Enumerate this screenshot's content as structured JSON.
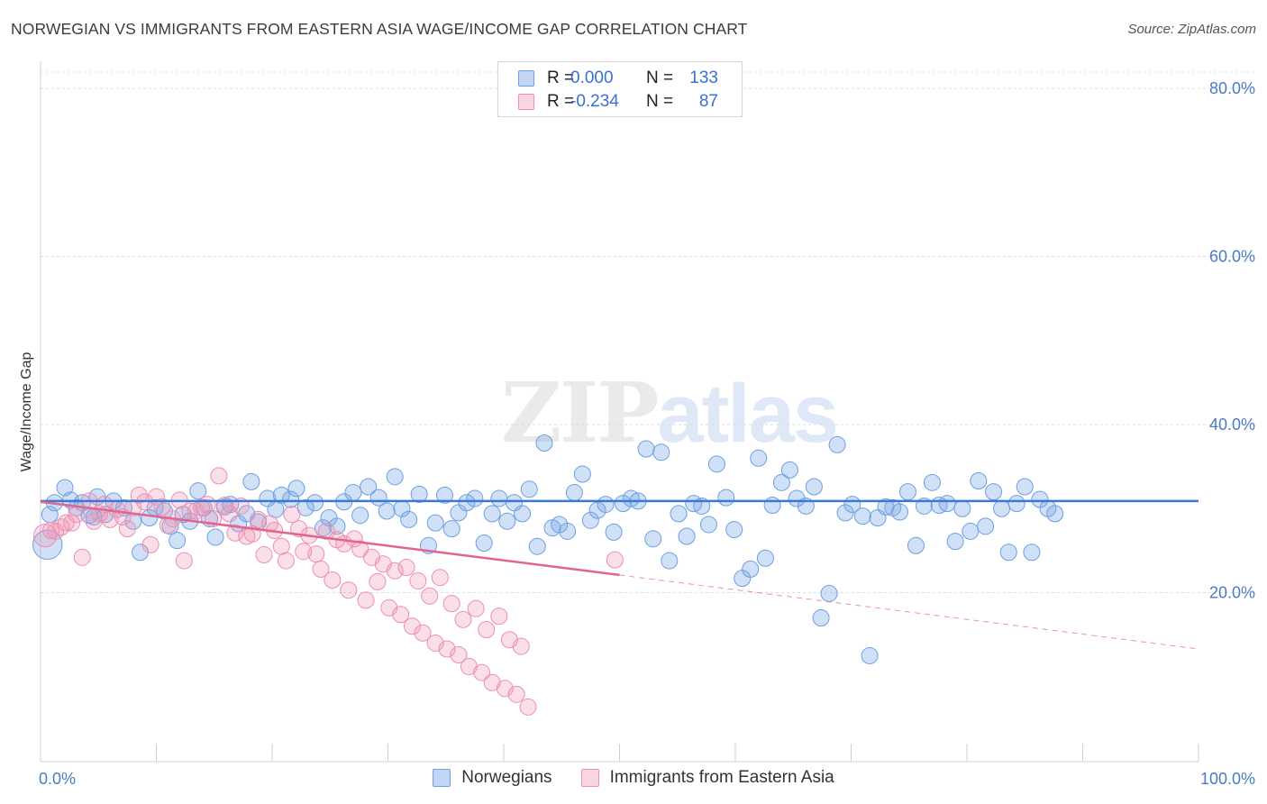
{
  "header": {
    "title": "NORWEGIAN VS IMMIGRANTS FROM EASTERN ASIA WAGE/INCOME GAP CORRELATION CHART",
    "source": "Source: ZipAtlas.com"
  },
  "watermark": {
    "part1": "ZIP",
    "part2": "atlas"
  },
  "legend": {
    "rows": [
      {
        "r_label": "R =",
        "r_value": "0.000",
        "n_label": "N =",
        "n_value": "133",
        "color": "#6ea0e6"
      },
      {
        "r_label": "R =",
        "r_value": "-0.234",
        "n_label": "N =",
        "n_value": "87",
        "color": "#ef8fb0"
      }
    ]
  },
  "bottom_legend": {
    "items": [
      "Norwegians",
      "Immigrants from Eastern Asia"
    ]
  },
  "colors": {
    "blue_fill": "rgba(120,165,230,0.35)",
    "blue_stroke": "#6e9fe2",
    "blue_line": "#3a78d6",
    "pink_fill": "rgba(240,150,180,0.30)",
    "pink_stroke": "#ec8fb2",
    "pink_line": "#e2648f",
    "tick_text": "#4a7cc4"
  },
  "chart_data": {
    "type": "scatter",
    "title": "NORWEGIAN VS IMMIGRANTS FROM EASTERN ASIA WAGE/INCOME GAP CORRELATION CHART",
    "xlabel": "",
    "ylabel": "Wage/Income Gap",
    "xlim": [
      0,
      100
    ],
    "ylim": [
      0,
      80
    ],
    "x_tick_labels": [
      "0.0%",
      "100.0%"
    ],
    "y_ticks": [
      20,
      40,
      60,
      80
    ],
    "y_tick_labels": [
      "20.0%",
      "40.0%",
      "60.0%",
      "80.0%"
    ],
    "grid": true,
    "legend_position": "top-center",
    "series": [
      {
        "name": "Norwegians",
        "r": 0.0,
        "n": 133,
        "trend": {
          "x": [
            0,
            100
          ],
          "y": [
            30.9,
            30.9
          ]
        },
        "points": [
          [
            0.6,
            25.7,
            1.8
          ],
          [
            0.8,
            29.3,
            1
          ],
          [
            1.2,
            30.7,
            1
          ],
          [
            2.1,
            32.5,
            1
          ],
          [
            2.6,
            31.0,
            1
          ],
          [
            3.1,
            30.1,
            1
          ],
          [
            3.6,
            30.7,
            1
          ],
          [
            4.2,
            29.2,
            1
          ],
          [
            4.6,
            29.0,
            1
          ],
          [
            4.9,
            31.4,
            1
          ],
          [
            5.6,
            29.3,
            1
          ],
          [
            6.3,
            30.9,
            1
          ],
          [
            7.2,
            30.1,
            1
          ],
          [
            8.0,
            28.5,
            1
          ],
          [
            8.6,
            24.8,
            1
          ],
          [
            9.4,
            28.9,
            1
          ],
          [
            9.9,
            30.1,
            1
          ],
          [
            10.7,
            29.7,
            1
          ],
          [
            11.2,
            27.9,
            1
          ],
          [
            11.8,
            26.2,
            1
          ],
          [
            12.3,
            29.3,
            1
          ],
          [
            12.9,
            28.5,
            1
          ],
          [
            13.6,
            32.1,
            1
          ],
          [
            14.1,
            30.1,
            1
          ],
          [
            14.6,
            28.8,
            1
          ],
          [
            15.1,
            26.6,
            1
          ],
          [
            15.9,
            30.2,
            1
          ],
          [
            16.4,
            30.5,
            1
          ],
          [
            17.1,
            28.2,
            1
          ],
          [
            17.8,
            29.4,
            1
          ],
          [
            18.2,
            33.2,
            1
          ],
          [
            18.8,
            28.4,
            1
          ],
          [
            19.6,
            31.2,
            1
          ],
          [
            20.3,
            29.9,
            1
          ],
          [
            20.8,
            31.6,
            1
          ],
          [
            21.6,
            31.1,
            1
          ],
          [
            22.1,
            32.4,
            1
          ],
          [
            22.9,
            30.1,
            1
          ],
          [
            23.7,
            30.7,
            1
          ],
          [
            24.4,
            27.7,
            1
          ],
          [
            24.9,
            28.9,
            1
          ],
          [
            25.6,
            27.9,
            1
          ],
          [
            26.2,
            30.8,
            1
          ],
          [
            27.0,
            31.9,
            1
          ],
          [
            27.6,
            29.2,
            1
          ],
          [
            28.3,
            32.6,
            1
          ],
          [
            29.2,
            31.3,
            1
          ],
          [
            29.9,
            29.7,
            1
          ],
          [
            30.6,
            33.8,
            1
          ],
          [
            31.2,
            30.0,
            1
          ],
          [
            31.8,
            28.7,
            1
          ],
          [
            32.7,
            31.7,
            1
          ],
          [
            33.5,
            25.6,
            1
          ],
          [
            34.1,
            28.3,
            1
          ],
          [
            34.9,
            31.6,
            1
          ],
          [
            35.5,
            27.6,
            1
          ],
          [
            36.1,
            29.5,
            1
          ],
          [
            36.8,
            30.7,
            1
          ],
          [
            37.5,
            31.2,
            1
          ],
          [
            38.3,
            25.9,
            1
          ],
          [
            39.0,
            29.4,
            1
          ],
          [
            39.6,
            31.2,
            1
          ],
          [
            40.3,
            28.5,
            1
          ],
          [
            40.9,
            30.7,
            1
          ],
          [
            41.6,
            29.4,
            1
          ],
          [
            42.2,
            32.3,
            1
          ],
          [
            42.9,
            25.5,
            1
          ],
          [
            43.5,
            37.8,
            1
          ],
          [
            44.2,
            27.7,
            1
          ],
          [
            44.8,
            28.1,
            1
          ],
          [
            45.5,
            27.3,
            1
          ],
          [
            46.1,
            31.9,
            1
          ],
          [
            46.8,
            34.1,
            1
          ],
          [
            47.5,
            28.6,
            1
          ],
          [
            48.1,
            29.8,
            1
          ],
          [
            48.8,
            30.5,
            1
          ],
          [
            49.5,
            27.2,
            1
          ],
          [
            50.3,
            30.6,
            1
          ],
          [
            51.0,
            31.2,
            1
          ],
          [
            51.6,
            30.9,
            1
          ],
          [
            52.3,
            37.1,
            1
          ],
          [
            52.9,
            26.4,
            1
          ],
          [
            53.6,
            36.7,
            1
          ],
          [
            54.3,
            23.8,
            1
          ],
          [
            55.1,
            29.4,
            1
          ],
          [
            55.8,
            26.7,
            1
          ],
          [
            56.4,
            30.6,
            1
          ],
          [
            57.1,
            30.3,
            1
          ],
          [
            57.7,
            28.1,
            1
          ],
          [
            58.4,
            35.3,
            1
          ],
          [
            59.2,
            31.3,
            1
          ],
          [
            59.9,
            27.5,
            1
          ],
          [
            60.6,
            21.7,
            1
          ],
          [
            61.3,
            22.8,
            1
          ],
          [
            62.0,
            36.0,
            1
          ],
          [
            62.6,
            24.1,
            1
          ],
          [
            63.2,
            30.4,
            1
          ],
          [
            64.0,
            33.1,
            1
          ],
          [
            64.7,
            34.6,
            1
          ],
          [
            65.3,
            31.2,
            1
          ],
          [
            66.1,
            30.3,
            1
          ],
          [
            66.8,
            32.6,
            1
          ],
          [
            67.4,
            17.0,
            1
          ],
          [
            68.1,
            19.9,
            1
          ],
          [
            68.8,
            37.6,
            1
          ],
          [
            69.5,
            29.5,
            1
          ],
          [
            70.1,
            30.5,
            1
          ],
          [
            71.0,
            29.1,
            1
          ],
          [
            71.6,
            12.5,
            1
          ],
          [
            72.3,
            28.9,
            1
          ],
          [
            73.0,
            30.2,
            1
          ],
          [
            73.6,
            30.1,
            1
          ],
          [
            74.2,
            29.6,
            1
          ],
          [
            74.9,
            32.0,
            1
          ],
          [
            75.6,
            25.6,
            1
          ],
          [
            76.3,
            30.3,
            1
          ],
          [
            77.0,
            33.1,
            1
          ],
          [
            77.6,
            30.4,
            1
          ],
          [
            78.3,
            30.6,
            1
          ],
          [
            79.0,
            26.1,
            1
          ],
          [
            79.6,
            30.0,
            1
          ],
          [
            80.3,
            27.3,
            1
          ],
          [
            81.0,
            33.3,
            1
          ],
          [
            81.6,
            27.9,
            1
          ],
          [
            82.3,
            32.0,
            1
          ],
          [
            83.0,
            30.0,
            1
          ],
          [
            83.6,
            24.8,
            1
          ],
          [
            84.3,
            30.6,
            1
          ],
          [
            85.0,
            32.6,
            1
          ],
          [
            85.6,
            24.8,
            1
          ],
          [
            86.3,
            31.1,
            1
          ],
          [
            87.0,
            30.0,
            1
          ],
          [
            87.6,
            29.4,
            1
          ]
        ]
      },
      {
        "name": "Immigrants from Eastern Asia",
        "r": -0.234,
        "n": 87,
        "trend": {
          "x": [
            0,
            50
          ],
          "y": [
            30.8,
            22.1
          ]
        },
        "trend_dashed": {
          "x": [
            50,
            100
          ],
          "y": [
            22.1,
            13.3
          ]
        },
        "points": [
          [
            0.4,
            26.8,
            1.4
          ],
          [
            0.9,
            27.4,
            1
          ],
          [
            1.3,
            27.3,
            1
          ],
          [
            1.8,
            27.8,
            1
          ],
          [
            2.2,
            28.3,
            1
          ],
          [
            2.7,
            28.3,
            1
          ],
          [
            3.1,
            29.3,
            1
          ],
          [
            3.6,
            24.2,
            1
          ],
          [
            4.2,
            30.9,
            1
          ],
          [
            4.6,
            28.5,
            1
          ],
          [
            5.1,
            29.4,
            1
          ],
          [
            5.5,
            30.5,
            1
          ],
          [
            6.0,
            28.7,
            1
          ],
          [
            6.6,
            29.9,
            1
          ],
          [
            7.1,
            29.0,
            1
          ],
          [
            7.5,
            27.6,
            1
          ],
          [
            8.0,
            30.1,
            1
          ],
          [
            8.5,
            31.6,
            1
          ],
          [
            9.0,
            30.8,
            1
          ],
          [
            9.5,
            25.7,
            1
          ],
          [
            10.0,
            31.4,
            1
          ],
          [
            10.5,
            30.2,
            1
          ],
          [
            11.0,
            28.0,
            1
          ],
          [
            11.4,
            28.8,
            1
          ],
          [
            12.0,
            31.0,
            1
          ],
          [
            12.4,
            23.8,
            1
          ],
          [
            12.9,
            29.7,
            1
          ],
          [
            13.4,
            29.7,
            1
          ],
          [
            13.9,
            30.1,
            1
          ],
          [
            14.4,
            30.5,
            1
          ],
          [
            14.9,
            28.8,
            1
          ],
          [
            15.4,
            33.9,
            1
          ],
          [
            15.9,
            30.4,
            1
          ],
          [
            16.3,
            29.4,
            1
          ],
          [
            16.8,
            27.1,
            1
          ],
          [
            17.3,
            30.3,
            1
          ],
          [
            17.8,
            26.7,
            1
          ],
          [
            18.3,
            27.0,
            1
          ],
          [
            18.8,
            28.7,
            1
          ],
          [
            19.3,
            24.5,
            1
          ],
          [
            19.8,
            28.2,
            1
          ],
          [
            20.2,
            27.4,
            1
          ],
          [
            20.8,
            25.5,
            1
          ],
          [
            21.2,
            23.8,
            1
          ],
          [
            21.7,
            29.3,
            1
          ],
          [
            22.3,
            27.6,
            1
          ],
          [
            22.7,
            24.9,
            1
          ],
          [
            23.2,
            26.8,
            1
          ],
          [
            23.8,
            24.6,
            1
          ],
          [
            24.2,
            22.8,
            1
          ],
          [
            24.7,
            27.3,
            1
          ],
          [
            25.2,
            21.5,
            1
          ],
          [
            25.6,
            26.3,
            1
          ],
          [
            26.2,
            25.8,
            1
          ],
          [
            26.6,
            20.3,
            1
          ],
          [
            27.1,
            26.4,
            1
          ],
          [
            27.6,
            25.2,
            1
          ],
          [
            28.1,
            19.1,
            1
          ],
          [
            28.6,
            24.2,
            1
          ],
          [
            29.1,
            21.3,
            1
          ],
          [
            29.6,
            23.4,
            1
          ],
          [
            30.1,
            18.2,
            1
          ],
          [
            30.6,
            22.6,
            1
          ],
          [
            31.1,
            17.4,
            1
          ],
          [
            31.6,
            23.0,
            1
          ],
          [
            32.1,
            16.0,
            1
          ],
          [
            32.6,
            21.4,
            1
          ],
          [
            33.0,
            15.2,
            1
          ],
          [
            33.6,
            19.6,
            1
          ],
          [
            34.1,
            14.0,
            1
          ],
          [
            34.5,
            21.8,
            1
          ],
          [
            35.1,
            13.3,
            1
          ],
          [
            35.5,
            18.7,
            1
          ],
          [
            36.1,
            12.6,
            1
          ],
          [
            36.5,
            16.8,
            1
          ],
          [
            37.0,
            11.2,
            1
          ],
          [
            37.6,
            18.1,
            1
          ],
          [
            38.1,
            10.5,
            1
          ],
          [
            38.5,
            15.6,
            1
          ],
          [
            39.0,
            9.3,
            1
          ],
          [
            39.6,
            17.2,
            1
          ],
          [
            40.1,
            8.6,
            1
          ],
          [
            40.5,
            14.4,
            1
          ],
          [
            41.1,
            7.9,
            1
          ],
          [
            41.5,
            13.6,
            1
          ],
          [
            42.1,
            6.4,
            1
          ],
          [
            49.6,
            23.9,
            1
          ]
        ]
      }
    ]
  }
}
